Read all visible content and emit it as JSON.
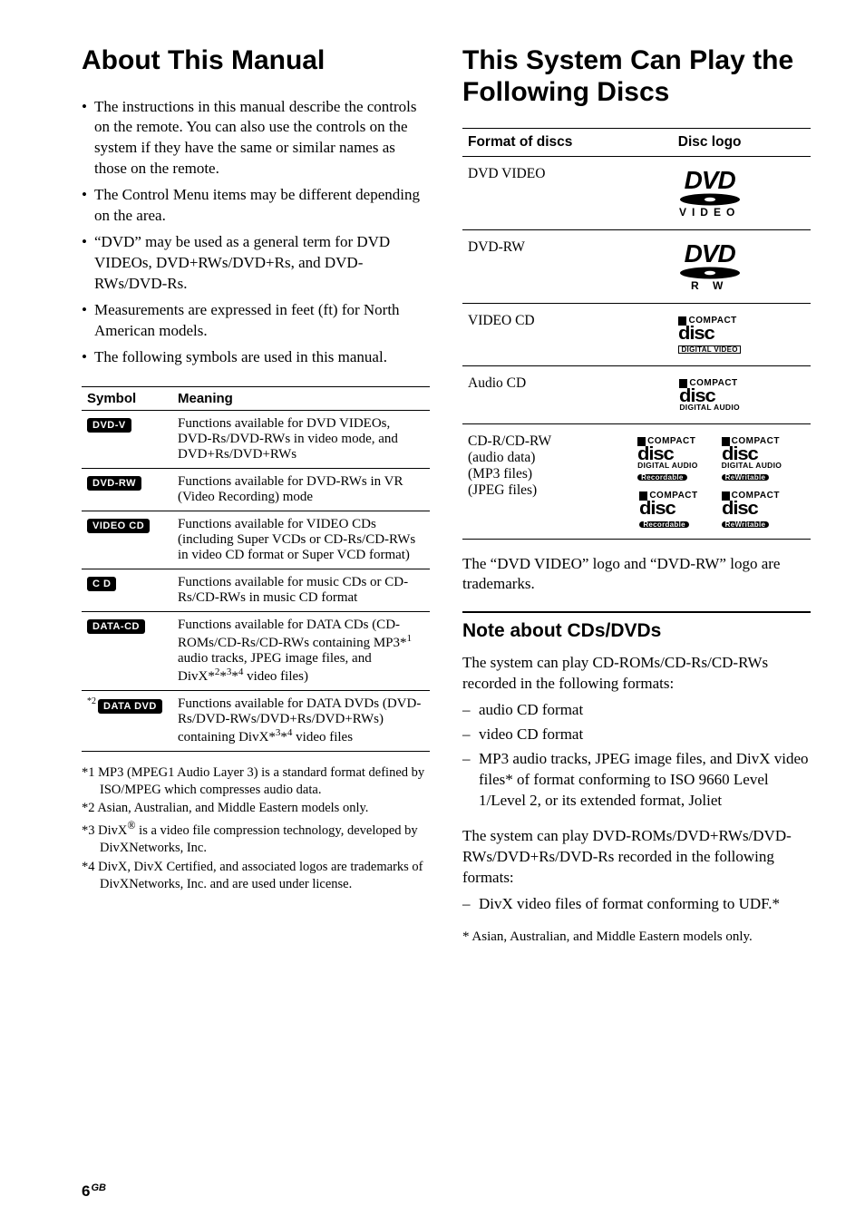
{
  "left": {
    "heading": "About This Manual",
    "bullets": [
      "The instructions in this manual describe the controls on the remote. You can also use the controls on the system if they have the same or similar names as those on the remote.",
      "The Control Menu items may be different depending on the area.",
      "“DVD” may be used as a general term for DVD VIDEOs, DVD+RWs/DVD+Rs, and DVD-RWs/DVD-Rs.",
      "Measurements are expressed in feet (ft) for North American models.",
      "The following symbols are used in this manual."
    ],
    "symbol_table": {
      "headers": [
        "Symbol",
        "Meaning"
      ],
      "rows": [
        {
          "badge": "DVD-V",
          "sup": "",
          "meaning_html": "Functions available for DVD VIDEOs, DVD-Rs/DVD-RWs in video mode, and DVD+Rs/DVD+RWs"
        },
        {
          "badge": "DVD-RW",
          "sup": "",
          "meaning_html": "Functions available for DVD-RWs in VR (Video Recording) mode"
        },
        {
          "badge": "VIDEO CD",
          "sup": "",
          "meaning_html": "Functions available for VIDEO CDs (including Super VCDs or CD-Rs/CD-RWs in video CD format or Super VCD format)"
        },
        {
          "badge": "C D",
          "sup": "",
          "meaning_html": "Functions available for music CDs or CD-Rs/CD-RWs in music CD format"
        },
        {
          "badge": "DATA-CD",
          "sup": "",
          "meaning_html": "Functions available for DATA CDs (CD-ROMs/CD-Rs/CD-RWs containing MP3*<span class='sup'>1</span> audio tracks, JPEG image files, and DivX*<span class='sup'>2</span>*<span class='sup'>3</span>*<span class='sup'>4</span> video files)"
        },
        {
          "badge": "DATA DVD",
          "sup": "*2",
          "meaning_html": "Functions available for DATA DVDs (DVD-Rs/DVD-RWs/DVD+Rs/DVD+RWs) containing DivX*<span class='sup'>3</span>*<span class='sup'>4</span> video files"
        }
      ]
    },
    "footnotes": [
      "*1 MP3 (MPEG1 Audio Layer 3) is a standard format defined by ISO/MPEG which compresses audio data.",
      "*2 Asian, Australian, and Middle Eastern models only.",
      "*3 DivX<sup>®</sup> is a video file compression technology, developed by DivXNetworks, Inc.",
      "*4 DivX, DivX Certified, and associated logos are trademarks of DivXNetworks, Inc. and are used under license."
    ]
  },
  "right": {
    "heading": "This System Can Play the Following Discs",
    "disc_table": {
      "headers": [
        "Format of discs",
        "Disc logo"
      ],
      "rows": [
        {
          "format": "DVD VIDEO",
          "logo": "dvd-video"
        },
        {
          "format": "DVD-RW",
          "logo": "dvd-rw"
        },
        {
          "format": "VIDEO CD",
          "logo": "compact-digitalvideo"
        },
        {
          "format": "Audio CD",
          "logo": "compact-digitalaudio"
        },
        {
          "format": "CD-R/CD-RW\n(audio data)\n(MP3 files)\n(JPEG files)",
          "logo": "compact-grid"
        }
      ]
    },
    "trademark_note": "The “DVD VIDEO” logo and “DVD-RW” logo are trademarks.",
    "subheading": "Note about CDs/DVDs",
    "para1": "The system can play CD-ROMs/CD-Rs/CD-RWs recorded in the following formats:",
    "list1": [
      "audio CD format",
      "video CD format",
      "MP3 audio tracks, JPEG image files, and DivX video files* of format conforming to ISO 9660 Level 1/Level 2, or its extended format, Joliet"
    ],
    "para2": "The system can play DVD-ROMs/DVD+RWs/DVD-RWs/DVD+Rs/DVD-Rs recorded in the following formats:",
    "list2": [
      "DivX video files of format conforming to UDF.*"
    ],
    "asterisk": "* Asian, Australian, and Middle Eastern models only."
  },
  "page": {
    "num": "6",
    "region": "GB"
  },
  "colors": {
    "text": "#000000",
    "background": "#ffffff",
    "rule": "#000000",
    "badge_bg": "#000000",
    "badge_fg": "#ffffff"
  },
  "fonts": {
    "body_family": "Times New Roman",
    "heading_family": "Arial",
    "body_size_pt": 12,
    "heading_size_pt": 22,
    "subheading_size_pt": 15
  }
}
